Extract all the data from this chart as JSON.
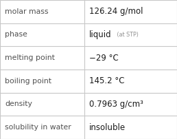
{
  "rows": [
    {
      "label": "molar mass",
      "value": "126.24 g/mol",
      "type": "plain"
    },
    {
      "label": "phase",
      "value": "liquid",
      "type": "phase",
      "suffix": " (at STP)"
    },
    {
      "label": "melting point",
      "value": "−29 °C",
      "type": "plain"
    },
    {
      "label": "boiling point",
      "value": "145.2 °C",
      "type": "plain"
    },
    {
      "label": "density",
      "value": "0.7963 g/cm³",
      "type": "plain"
    },
    {
      "label": "solubility in water",
      "value": "insoluble",
      "type": "plain"
    }
  ],
  "n_rows": 6,
  "col_split": 0.478,
  "border_color": "#c8c8c8",
  "bg_color": "#ffffff",
  "label_color": "#505050",
  "value_color": "#1a1a1a",
  "suffix_color": "#909090",
  "label_fontsize": 7.8,
  "value_fontsize": 8.5,
  "suffix_fontsize": 5.8
}
